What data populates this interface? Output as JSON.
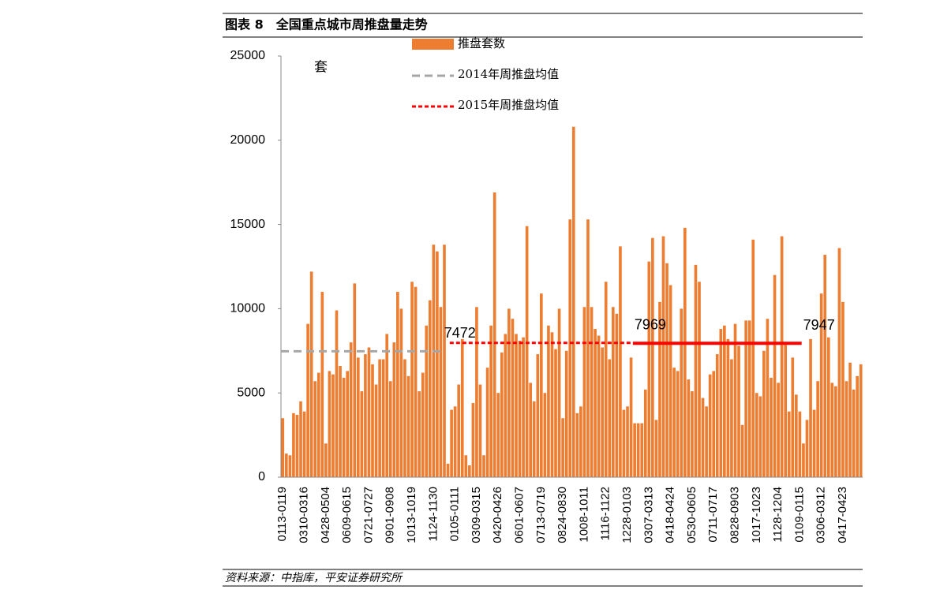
{
  "chart_data": {
    "type": "bar",
    "title": "图表 8　全国重点城市周推盘量走势",
    "unit": "套",
    "source": "资料来源：中指库，平安证券研究所",
    "categories": [
      "0113-0119",
      null,
      null,
      null,
      null,
      null,
      "0310-0316",
      null,
      null,
      null,
      null,
      null,
      "0428-0504",
      null,
      null,
      null,
      null,
      null,
      "0609-0615",
      null,
      null,
      null,
      null,
      null,
      "0721-0727",
      null,
      null,
      null,
      null,
      null,
      "0901-0908",
      null,
      null,
      null,
      null,
      null,
      "1013-1019",
      null,
      null,
      null,
      null,
      null,
      "1124-1130",
      null,
      null,
      null,
      null,
      null,
      "0105-0111",
      null,
      null,
      null,
      null,
      null,
      "0309-0315",
      null,
      null,
      null,
      null,
      null,
      "0420-0426",
      null,
      null,
      null,
      null,
      null,
      "0601-0607",
      null,
      null,
      null,
      null,
      null,
      "0713-0719",
      null,
      null,
      null,
      null,
      null,
      "0824-0830",
      null,
      null,
      null,
      null,
      null,
      "1008-1011",
      null,
      null,
      null,
      null,
      null,
      "1116-1122",
      null,
      null,
      null,
      null,
      null,
      "1228-0103",
      null,
      null,
      null,
      null,
      null,
      "0307-0313",
      null,
      null,
      null,
      null,
      null,
      "0418-0424",
      null,
      null,
      null,
      null,
      null,
      "0530-0605",
      null,
      null,
      null,
      null,
      null,
      "0711-0717",
      null,
      null,
      null,
      null,
      null,
      "0828-0903",
      null,
      null,
      null,
      null,
      null,
      "1017-1023",
      null,
      null,
      null,
      null,
      null,
      "1128-1204",
      null,
      null,
      null,
      null,
      null,
      "0109-0115",
      null,
      null,
      null,
      null,
      null,
      "0306-0312",
      null,
      null,
      null,
      null,
      null,
      "0417-0423",
      null,
      null,
      null,
      null,
      null
    ],
    "series": [
      {
        "name": "推盘套数",
        "color": "#ed7d31",
        "values": [
          3500,
          1400,
          1300,
          3800,
          3700,
          4500,
          3900,
          9100,
          12200,
          5700,
          6200,
          11000,
          2000,
          6300,
          6100,
          9900,
          6600,
          5900,
          6300,
          8000,
          11500,
          7100,
          5100,
          7300,
          7700,
          6700,
          5500,
          7000,
          7000,
          8500,
          5700,
          8000,
          11000,
          10000,
          7000,
          6000,
          11600,
          11300,
          5100,
          6200,
          9000,
          10500,
          13800,
          13400,
          10100,
          13800,
          800,
          4000,
          4200,
          5500,
          8200,
          1300,
          700,
          4400,
          10100,
          5500,
          1300,
          6500,
          9000,
          16900,
          5000,
          7400,
          8500,
          10000,
          9400,
          8500,
          8100,
          8300,
          14900,
          5600,
          4500,
          7300,
          10900,
          5000,
          9000,
          8600,
          7600,
          10000,
          3500,
          7500,
          15300,
          20800,
          3800,
          4200,
          10100,
          15300,
          10100,
          8800,
          8400,
          7700,
          11600,
          7000,
          10100,
          9700,
          13700,
          4000,
          4200,
          7100,
          3200,
          3200,
          3200,
          5200,
          12800,
          14200,
          3400,
          10400,
          14300,
          12700,
          11400,
          6500,
          6300,
          10000,
          14800,
          5800,
          5100,
          12600,
          11600,
          4700,
          4200,
          6100,
          6300,
          7300,
          8800,
          9000,
          8200,
          7000,
          9100,
          7800,
          3100,
          9300,
          9300,
          14100,
          5000,
          4800,
          7500,
          9400,
          5900,
          12000,
          5600,
          14300,
          8000,
          3900,
          7100,
          4900,
          3900,
          2000,
          3400,
          8200,
          4000,
          5700,
          10900,
          13200,
          8300,
          5600,
          5400,
          13600,
          10400,
          5700,
          6800,
          5200,
          6000,
          6700
        ]
      }
    ],
    "reference_lines": [
      {
        "name": "2014年周推盘均值",
        "value": 7472,
        "color": "#a6a6a6",
        "style": "dashed",
        "range": [
          0,
          44
        ]
      },
      {
        "name": "2015年周推盘均值",
        "value": 7969,
        "color": "#ff0000",
        "style": "dotted",
        "range": [
          47,
          97
        ]
      },
      {
        "value": 7947,
        "color": "#ff0000",
        "style": "solid",
        "range": [
          98,
          144
        ]
      }
    ],
    "ylim": [
      0,
      25000
    ],
    "yticks": [
      0,
      5000,
      10000,
      15000,
      20000,
      25000
    ]
  }
}
